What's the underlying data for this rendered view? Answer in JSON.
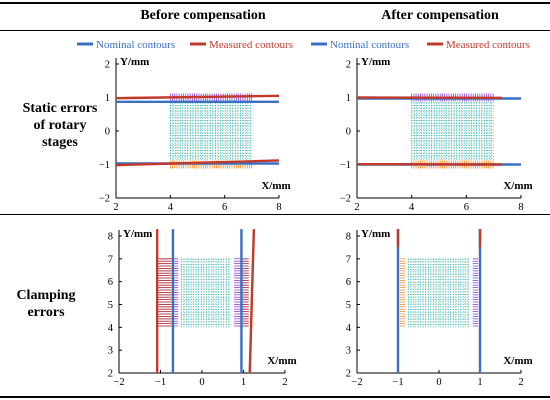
{
  "headers": {
    "before": "Before compensation",
    "after": "After compensation"
  },
  "row_labels": {
    "static": [
      "Static errors",
      "of rotary",
      "stages"
    ],
    "clamping": [
      "Clamping",
      "errors"
    ]
  },
  "legend": [
    {
      "name": "Nominal contours",
      "color": "#3a6fc4"
    },
    {
      "name": "Measured contours",
      "color": "#c0392b"
    },
    {
      "name": "Nominal contours",
      "color": "#3a6fc4"
    },
    {
      "name": "Measured contours",
      "color": "#c0392b"
    }
  ],
  "colors": {
    "nominal": "#3a6fc4",
    "measured": "#c0392b",
    "error_purple": "#8a3fd0",
    "error_orange": "#f08a1c",
    "grid_cyan": "#2bb5c8",
    "grid_green": "#2e9b4a"
  },
  "chart_data": [
    {
      "type": "line",
      "panel": "before-static",
      "xlabel": "X/mm",
      "ylabel": "Y/mm",
      "xlim": [
        2,
        8
      ],
      "ylim": [
        -2,
        2
      ],
      "xticks": [
        2,
        4,
        6,
        8
      ],
      "yticks": [
        -2,
        -1,
        0,
        1,
        2
      ],
      "series": [
        {
          "name": "Nominal contours",
          "x": [
            2,
            8
          ],
          "y": [
            0.87,
            0.87
          ]
        },
        {
          "name": "Nominal contours",
          "x": [
            2,
            8
          ],
          "y": [
            -0.97,
            -0.97
          ]
        },
        {
          "name": "Measured contours",
          "x": [
            2,
            8
          ],
          "y": [
            0.98,
            1.05
          ]
        },
        {
          "name": "Measured contours",
          "x": [
            2,
            8
          ],
          "y": [
            -1.02,
            -0.88
          ]
        }
      ],
      "measurement_grid": {
        "x": [
          4,
          7
        ],
        "y": [
          -0.85,
          0.85
        ]
      }
    },
    {
      "type": "line",
      "panel": "after-static",
      "xlabel": "X/mm",
      "ylabel": "Y/mm",
      "xlim": [
        2,
        8
      ],
      "ylim": [
        -2,
        2
      ],
      "xticks": [
        2,
        4,
        6,
        8
      ],
      "yticks": [
        -2,
        -1,
        0,
        1,
        2
      ],
      "series": [
        {
          "name": "Nominal contours",
          "x": [
            2,
            8
          ],
          "y": [
            0.97,
            0.97
          ]
        },
        {
          "name": "Nominal contours",
          "x": [
            2,
            8
          ],
          "y": [
            -1.0,
            -1.0
          ]
        },
        {
          "name": "Measured contours",
          "x": [
            2,
            7.3
          ],
          "y": [
            1.0,
            0.99
          ]
        },
        {
          "name": "Measured contours",
          "x": [
            2,
            7.3
          ],
          "y": [
            -0.99,
            -1.0
          ]
        }
      ],
      "measurement_grid": {
        "x": [
          4,
          7
        ],
        "y": [
          -0.85,
          0.85
        ]
      }
    },
    {
      "type": "line",
      "panel": "before-clamping",
      "xlabel": "X/mm",
      "ylabel": "Y/mm",
      "xlim": [
        -2,
        2
      ],
      "ylim": [
        2,
        8
      ],
      "xticks": [
        -2,
        -1,
        0,
        1,
        2
      ],
      "yticks": [
        2,
        3,
        4,
        5,
        6,
        7,
        8
      ],
      "series": [
        {
          "name": "Nominal contours",
          "x": [
            -0.7,
            -0.7
          ],
          "y": [
            2,
            8.3
          ]
        },
        {
          "name": "Nominal contours",
          "x": [
            0.95,
            0.95
          ],
          "y": [
            2,
            8.3
          ]
        },
        {
          "name": "Measured contours",
          "x": [
            -1.08,
            -1.08
          ],
          "y": [
            2,
            8.3
          ]
        },
        {
          "name": "Measured contours",
          "x": [
            1.15,
            1.25
          ],
          "y": [
            2,
            8.3
          ]
        }
      ],
      "measurement_grid": {
        "x": [
          -0.5,
          0.7
        ],
        "y": [
          4,
          7
        ]
      }
    },
    {
      "type": "line",
      "panel": "after-clamping",
      "xlabel": "X/mm",
      "ylabel": "Y/mm",
      "xlim": [
        -2,
        2
      ],
      "ylim": [
        2,
        8
      ],
      "xticks": [
        -2,
        -1,
        0,
        1,
        2
      ],
      "yticks": [
        2,
        3,
        4,
        5,
        6,
        7,
        8
      ],
      "series": [
        {
          "name": "Nominal contours",
          "x": [
            -1.0,
            -1.0
          ],
          "y": [
            2,
            8.3
          ]
        },
        {
          "name": "Nominal contours",
          "x": [
            1.0,
            1.0
          ],
          "y": [
            2,
            8.3
          ]
        },
        {
          "name": "Measured contours",
          "x": [
            -1.0,
            -1.0
          ],
          "y": [
            7.5,
            8.3
          ]
        },
        {
          "name": "Measured contours",
          "x": [
            1.0,
            1.0
          ],
          "y": [
            7.5,
            8.3
          ]
        }
      ],
      "measurement_grid": {
        "x": [
          -0.75,
          0.75
        ],
        "y": [
          4,
          7
        ]
      }
    }
  ]
}
